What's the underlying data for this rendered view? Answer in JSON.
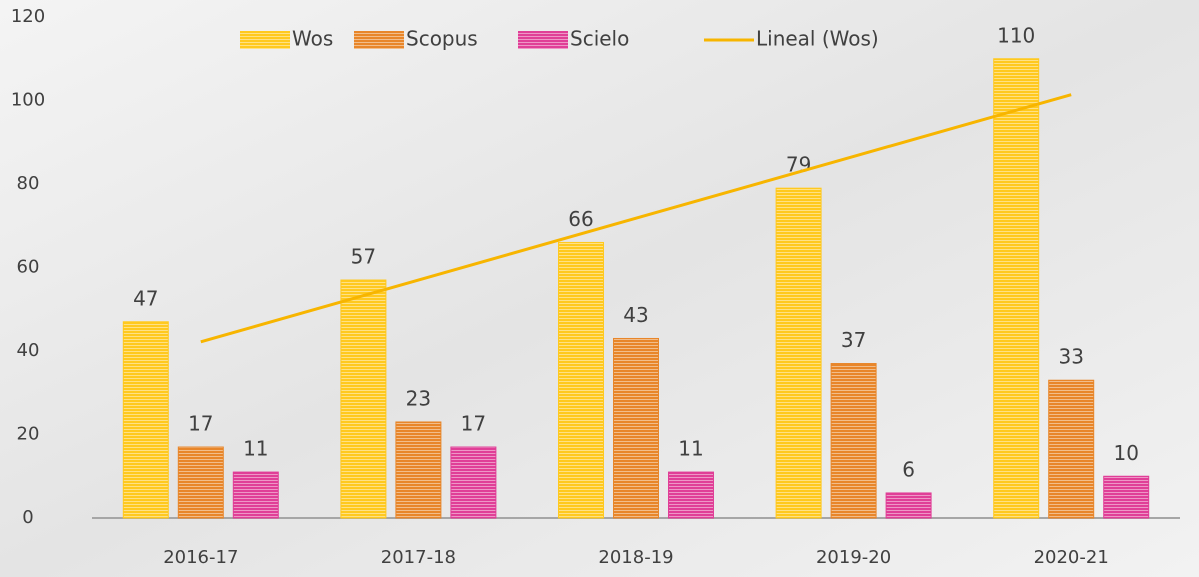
{
  "chart_data": {
    "type": "bar",
    "categories": [
      "2016-17",
      "2017-18",
      "2018-19",
      "2019-20",
      "2020-21"
    ],
    "series": [
      {
        "name": "Wos",
        "color": "#ffc91f",
        "values": [
          47,
          57,
          66,
          79,
          110
        ]
      },
      {
        "name": "Scopus",
        "color": "#e8862a",
        "values": [
          17,
          23,
          43,
          37,
          33
        ]
      },
      {
        "name": "Scielo",
        "color": "#e03f97",
        "values": [
          11,
          17,
          11,
          6,
          10
        ]
      },
      {
        "name": "Lineal (Wos)",
        "type": "line",
        "color": "#f7b500",
        "values": [
          42.2,
          57,
          71.8,
          86.6,
          101.4
        ]
      }
    ],
    "ylim": [
      0,
      120
    ],
    "yticks": [
      0,
      20,
      40,
      60,
      80,
      100,
      120
    ],
    "grid": false
  }
}
